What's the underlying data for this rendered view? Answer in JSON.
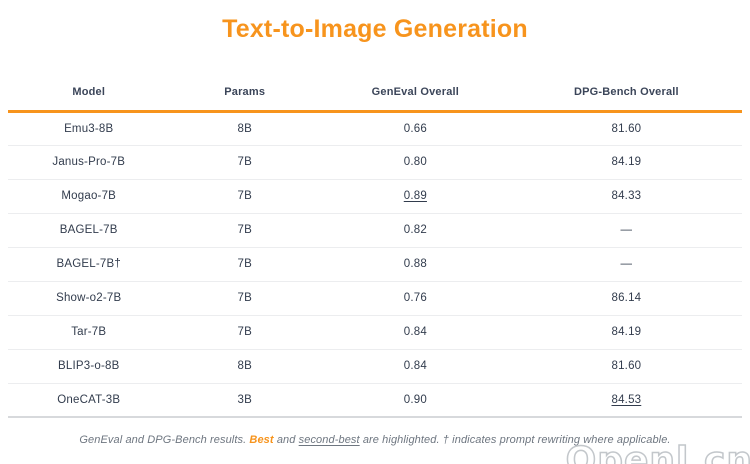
{
  "title": "Text-to-Image Generation",
  "colors": {
    "accent_orange": "#F7941D",
    "body_text": "#323c4d",
    "header_text": "#3b4559",
    "row_divider": "#ecedef",
    "footnote_text": "#6e7680"
  },
  "table": {
    "columns": [
      "Model",
      "Params",
      "GenEval Overall",
      "DPG-Bench Overall"
    ],
    "rows": [
      {
        "model": "Emu3-8B",
        "params": "8B",
        "geneval": "0.66",
        "dpg": "81.60"
      },
      {
        "model": "Janus-Pro-7B",
        "params": "7B",
        "geneval": "0.80",
        "dpg": "84.19"
      },
      {
        "model": "Mogao-7B",
        "params": "7B",
        "geneval": "0.89",
        "dpg": "84.33",
        "styles": {
          "geneval": "second-best"
        }
      },
      {
        "model": "BAGEL-7B",
        "params": "7B",
        "geneval": "0.82",
        "dpg": "—",
        "styles": {
          "dpg": "na"
        }
      },
      {
        "model": "BAGEL-7B†",
        "params": "7B",
        "geneval": "0.88",
        "dpg": "—",
        "styles": {
          "dpg": "na"
        }
      },
      {
        "model": "Show-o2-7B",
        "params": "7B",
        "geneval": "0.76",
        "dpg": "86.14",
        "styles": {
          "dpg": "best"
        }
      },
      {
        "model": "Tar-7B",
        "params": "7B",
        "geneval": "0.84",
        "dpg": "84.19"
      },
      {
        "model": "BLIP3-o-8B",
        "params": "8B",
        "geneval": "0.84",
        "dpg": "81.60"
      },
      {
        "model": "OneCAT-3B",
        "params": "3B",
        "geneval": "0.90",
        "dpg": "84.53",
        "styles": {
          "model": "best",
          "geneval": "best",
          "dpg": "second-best"
        }
      }
    ]
  },
  "chart_data": {
    "type": "table",
    "title": "Text-to-Image Generation",
    "columns": [
      "Model",
      "Params",
      "GenEval Overall",
      "DPG-Bench Overall"
    ],
    "rows": [
      [
        "Emu3-8B",
        "8B",
        0.66,
        81.6
      ],
      [
        "Janus-Pro-7B",
        "7B",
        0.8,
        84.19
      ],
      [
        "Mogao-7B",
        "7B",
        0.89,
        84.33
      ],
      [
        "BAGEL-7B",
        "7B",
        0.82,
        null
      ],
      [
        "BAGEL-7B†",
        "7B",
        0.88,
        null
      ],
      [
        "Show-o2-7B",
        "7B",
        0.76,
        86.14
      ],
      [
        "Tar-7B",
        "7B",
        0.84,
        84.19
      ],
      [
        "BLIP3-o-8B",
        "8B",
        0.84,
        81.6
      ],
      [
        "OneCAT-3B",
        "3B",
        0.9,
        84.53
      ]
    ],
    "highlights": {
      "best_geneval": {
        "model": "OneCAT-3B",
        "value": 0.9
      },
      "second_best_geneval": {
        "model": "Mogao-7B",
        "value": 0.89
      },
      "best_dpg": {
        "model": "Show-o2-7B",
        "value": 86.14
      },
      "second_best_dpg": {
        "model": "OneCAT-3B",
        "value": 84.53
      }
    }
  },
  "footnote": {
    "part1": "GenEval and DPG-Bench results. ",
    "best_label": "Best",
    "part2": " and ",
    "second_best_label": "second-best",
    "part3": " are highlighted. † indicates prompt rewriting where applicable."
  },
  "watermark": "Openl.cn"
}
